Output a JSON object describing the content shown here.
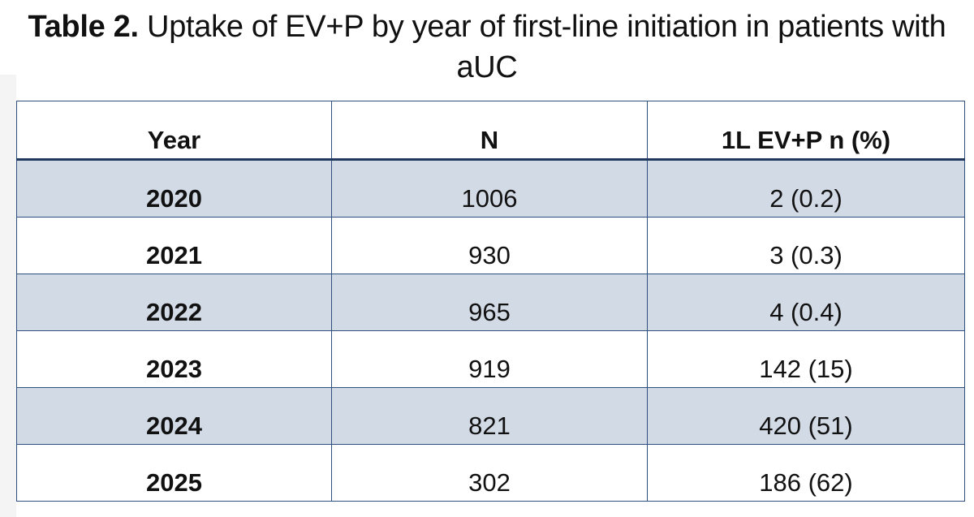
{
  "title": {
    "label": "Table 2.",
    "text": "Uptake of EV+P by year of first-line initiation in patients with aUC"
  },
  "chart_data": {
    "type": "table",
    "columns": [
      "Year",
      "N",
      "1L EV+P n (%)"
    ],
    "rows": [
      [
        "2020",
        "1006",
        "2 (0.2)"
      ],
      [
        "2021",
        "930",
        "3 (0.3)"
      ],
      [
        "2022",
        "965",
        "4 (0.4)"
      ],
      [
        "2023",
        "919",
        "142 (15)"
      ],
      [
        "2024",
        "821",
        "420 (51)"
      ],
      [
        "2025",
        "302",
        "186 (62)"
      ]
    ],
    "row_shading": [
      "shaded",
      "plain",
      "shaded",
      "plain",
      "shaded",
      "plain"
    ],
    "colors": {
      "shaded_row": "#d2dae6",
      "border": "#2f4f7f"
    }
  }
}
